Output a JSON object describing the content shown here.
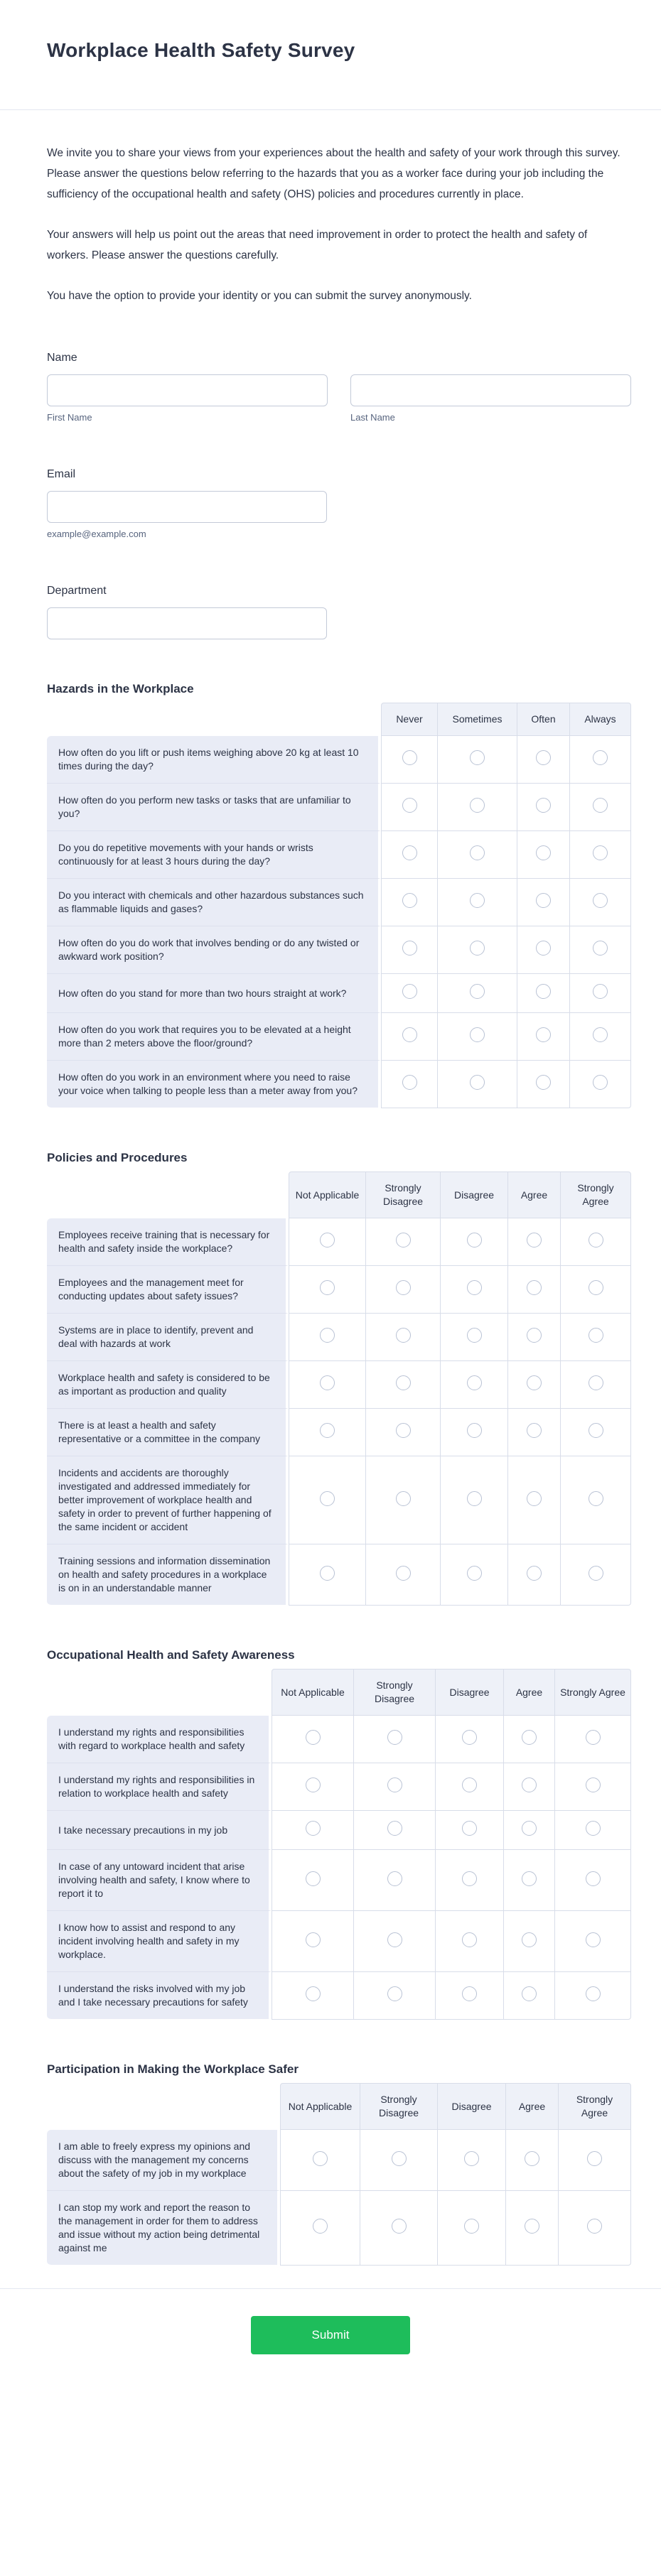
{
  "page": {
    "title": "Workplace Health Safety Survey"
  },
  "intro": {
    "p1": "We invite you to share your views from your experiences about the health and safety of your work through this survey. Please answer the questions below referring to the hazards that you as a worker face during your job including the sufficiency of the occupational health and safety (OHS) policies and procedures currently in place.",
    "p2": "Your answers will help us point out the areas that need improvement in order to protect the health and safety of workers. Please answer the questions carefully.",
    "p3": "You have the option to provide your identity or you can submit the survey anonymously."
  },
  "fields": {
    "name": {
      "label": "Name",
      "first": {
        "value": "",
        "placeholder": "",
        "sublabel": "First Name"
      },
      "last": {
        "value": "",
        "placeholder": "",
        "sublabel": "Last Name"
      }
    },
    "email": {
      "label": "Email",
      "value": "",
      "placeholder": "",
      "sublabel": "example@example.com"
    },
    "department": {
      "label": "Department",
      "value": "",
      "placeholder": ""
    }
  },
  "tables": [
    {
      "title": "Hazards in the Workplace",
      "options": [
        "Never",
        "Sometimes",
        "Often",
        "Always"
      ],
      "rows": [
        "How often do you lift or push items weighing above 20 kg at least 10 times during the day?",
        "How often do you perform new tasks or tasks that are unfamiliar to you?",
        "Do you do repetitive movements with your hands or wrists continuously for at least 3 hours during the day?",
        "Do you interact with chemicals and other hazardous substances such as flammable liquids and gases?",
        "How often do you do work that involves bending or do any twisted or awkward work position?",
        "How often do you stand for more than two hours straight at work?",
        "How often do you work that requires you to be elevated at a height more than 2 meters above the floor/ground?",
        "How often do you work in an environment where you need to raise your voice when talking to people less than a meter away from you?"
      ]
    },
    {
      "title": "Policies and Procedures",
      "options": [
        "Not Applicable",
        "Strongly Disagree",
        "Disagree",
        "Agree",
        "Strongly Agree"
      ],
      "rows": [
        "Employees receive training that is necessary for health and safety inside the workplace?",
        "Employees and the management meet for conducting updates about safety issues?",
        "Systems are in place to identify, prevent and deal with hazards at work",
        "Workplace health and safety is considered to be as important as production and quality",
        "There is at least a health and safety representative or a committee in the company",
        "Incidents and accidents are thoroughly investigated and addressed immediately for better improvement of workplace health and safety in order to prevent of further happening of the same incident or accident",
        "Training sessions and information dissemination on health and safety procedures in a workplace is on in an understandable manner"
      ]
    },
    {
      "title": "Occupational Health and Safety Awareness",
      "options": [
        "Not Applicable",
        "Strongly Disagree",
        "Disagree",
        "Agree",
        "Strongly Agree"
      ],
      "rows": [
        "I understand my rights and responsibilities with regard to workplace health and safety",
        "I understand my rights and responsibilities in relation to workplace health and safety",
        "I take necessary precautions in my job",
        "In case of any untoward incident that arise involving health and safety, I know where to report it to",
        "I know how to assist and respond to any incident involving health and safety in my workplace.",
        "I understand the risks involved with my job and I take necessary precautions for safety"
      ]
    },
    {
      "title": "Participation in Making the Workplace Safer",
      "options": [
        "Not Applicable",
        "Strongly Disagree",
        "Disagree",
        "Agree",
        "Strongly Agree"
      ],
      "rows": [
        "I am able to freely express my opinions and discuss with the management my concerns about the safety of my job in my workplace",
        "I can stop my work and report the reason to the management in order for them to address and issue without my action being detrimental against me"
      ]
    }
  ],
  "submit": {
    "label": "Submit"
  },
  "colors": {
    "accent_green": "#1ebd5b",
    "text_dark": "#2c3345",
    "sublabel_gray": "#57647e",
    "table_header_bg": "#eef1f8",
    "question_cell_bg": "#e9ecf6",
    "table_border": "#d8dde9",
    "divider": "#e3e7f0",
    "input_border": "#c3cad8"
  }
}
